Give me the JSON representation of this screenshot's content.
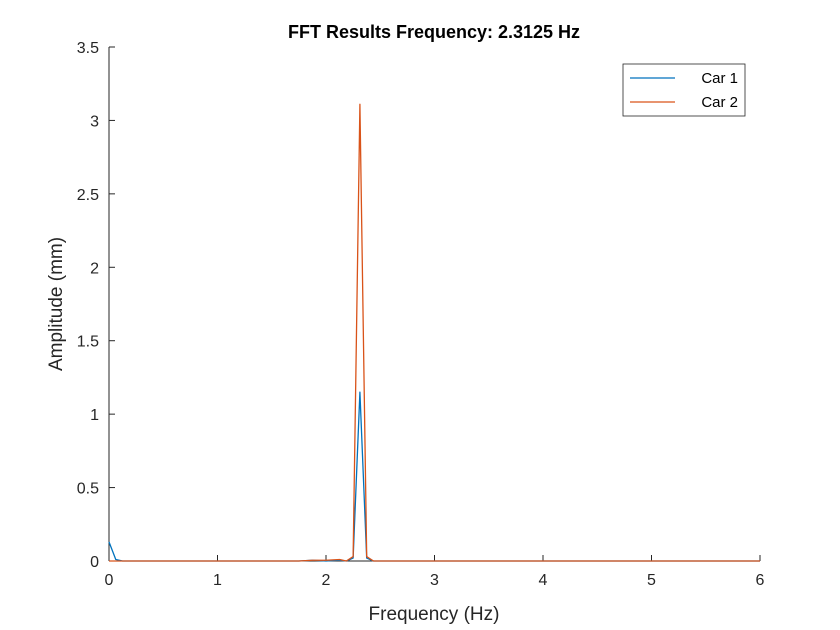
{
  "chart_data": {
    "type": "line",
    "title": "FFT Results Frequency: 2.3125 Hz",
    "xlabel": "Frequency (Hz)",
    "ylabel": "Amplitude (mm)",
    "xlim": [
      0,
      6
    ],
    "ylim": [
      0,
      3.5
    ],
    "xticks": [
      0,
      1,
      2,
      3,
      4,
      5,
      6
    ],
    "xtick_labels": [
      "0",
      "1",
      "2",
      "3",
      "4",
      "5",
      "6"
    ],
    "yticks": [
      0,
      0.5,
      1,
      1.5,
      2,
      2.5,
      3,
      3.5
    ],
    "ytick_labels": [
      "0",
      "0.5",
      "1",
      "1.5",
      "2",
      "2.5",
      "3",
      "3.5"
    ],
    "grid": false,
    "legend_position": "top-right",
    "series": [
      {
        "name": "Car 1",
        "color": "#0072BD",
        "x": [
          0,
          0.0625,
          0.125,
          1.75,
          1.875,
          2.0,
          2.125,
          2.1875,
          2.25,
          2.3125,
          2.375,
          2.4375,
          2.5,
          3.0,
          6.0
        ],
        "y": [
          0.13,
          0.01,
          0.0,
          0.0,
          0.005,
          0.0,
          0.005,
          0.0,
          0.02,
          1.15,
          0.02,
          0.0,
          0.0,
          0.0,
          0.0
        ]
      },
      {
        "name": "Car 2",
        "color": "#D95319",
        "x": [
          0,
          0.0625,
          1.75,
          1.875,
          2.0,
          2.125,
          2.1875,
          2.25,
          2.3125,
          2.375,
          2.4375,
          2.5,
          3.0,
          6.0
        ],
        "y": [
          0.0,
          0.0,
          0.0,
          0.005,
          0.005,
          0.01,
          0.0,
          0.03,
          3.11,
          0.03,
          0.0,
          0.0,
          0.0,
          0.0
        ]
      }
    ]
  }
}
